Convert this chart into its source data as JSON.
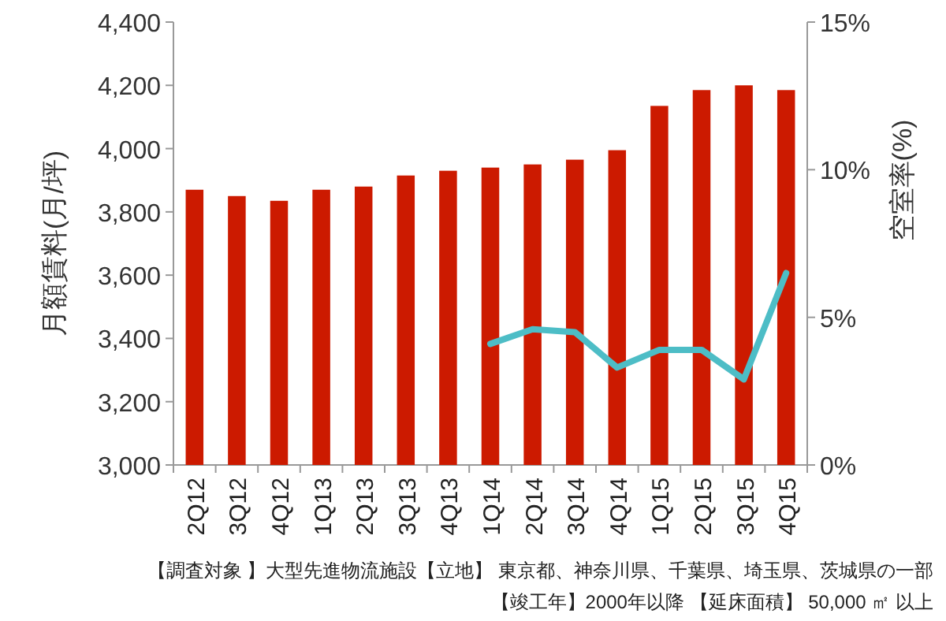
{
  "chart_data": {
    "type": "bar",
    "xlabel": null,
    "ylabel": "月額賃料(月/坪)",
    "y2label": "空室率(%)",
    "categories": [
      "2Q12",
      "3Q12",
      "4Q12",
      "1Q13",
      "2Q13",
      "3Q13",
      "4Q13",
      "1Q14",
      "2Q14",
      "3Q14",
      "4Q14",
      "1Q15",
      "2Q15",
      "3Q15",
      "4Q15"
    ],
    "series": [
      {
        "color": "#cc1a00",
        "values": [
          3870,
          3850,
          3835,
          3870,
          3880,
          3915,
          3930,
          3940,
          3950,
          3965,
          3995,
          4135,
          4185,
          4200,
          4185
        ]
      },
      {
        "type": "line",
        "axis": "y2",
        "color": "#4dbdc6",
        "values": [
          null,
          null,
          null,
          null,
          null,
          null,
          null,
          4.1,
          4.6,
          4.5,
          3.3,
          3.9,
          3.9,
          2.9,
          6.5
        ]
      }
    ],
    "ylim": [
      3000,
      4400
    ],
    "yticks": [
      {
        "value": 3000,
        "label": "3,000"
      },
      {
        "value": 3200,
        "label": "3,200"
      },
      {
        "value": 3400,
        "label": "3,400"
      },
      {
        "value": 3600,
        "label": "3,600"
      },
      {
        "value": 3800,
        "label": "3,800"
      },
      {
        "value": 4000,
        "label": "4,000"
      },
      {
        "value": 4200,
        "label": "4,200"
      },
      {
        "value": 4400,
        "label": "4,400"
      }
    ],
    "y2lim": [
      0,
      15
    ],
    "y2ticks": [
      {
        "value": 0,
        "label": "0%"
      },
      {
        "value": 5,
        "label": "5%"
      },
      {
        "value": 10,
        "label": "10%"
      },
      {
        "value": 15,
        "label": "15%"
      }
    ],
    "grid": false,
    "line_style": "solid",
    "marker": "none",
    "annotations": [
      "【調査対象 】大型先進物流施設【立地】 東京都、神奈川県、千葉県、埼玉県、茨城県の一部",
      "【竣工年】2000年以降 【延床面積】 50,000 ㎡ 以上"
    ]
  }
}
